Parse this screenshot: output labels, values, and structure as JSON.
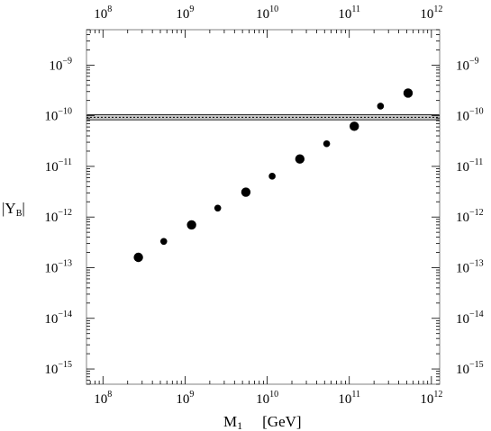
{
  "chart_data": {
    "type": "scatter",
    "xlabel_symbol": "M",
    "xlabel_subscript": "1",
    "xlabel_unit": "[GeV]",
    "ylabel_text": "|Y",
    "ylabel_subscript": "B",
    "ylabel_end": "|",
    "x_scale": "log",
    "y_scale": "log",
    "xlim": [
      63000000.0,
      1260000000000.0
    ],
    "ylim": [
      5e-16,
      5e-09
    ],
    "x_ticks": [
      {
        "base": "10",
        "exp": "8",
        "value": 100000000.0
      },
      {
        "base": "10",
        "exp": "9",
        "value": 1000000000.0
      },
      {
        "base": "10",
        "exp": "10",
        "value": 10000000000.0
      },
      {
        "base": "10",
        "exp": "11",
        "value": 100000000000.0
      },
      {
        "base": "10",
        "exp": "12",
        "value": 1000000000000.0
      }
    ],
    "y_ticks": [
      {
        "base": "10",
        "exp": "−9",
        "value": 1e-09
      },
      {
        "base": "10",
        "exp": "−10",
        "value": 1e-10
      },
      {
        "base": "10",
        "exp": "−11",
        "value": 1e-11
      },
      {
        "base": "10",
        "exp": "−12",
        "value": 1e-12
      },
      {
        "base": "10",
        "exp": "−13",
        "value": 1e-13
      },
      {
        "base": "10",
        "exp": "−14",
        "value": 1e-14
      },
      {
        "base": "10",
        "exp": "−15",
        "value": 1e-15
      }
    ],
    "observed_band": {
      "lower": 8.3e-11,
      "upper": 1.05e-10,
      "central": 9.3e-11,
      "color": "#c8c8c8"
    },
    "points": [
      {
        "x": 270000000.0,
        "y": 1.6e-13,
        "size": "large"
      },
      {
        "x": 550000000.0,
        "y": 3.3e-13,
        "size": "small"
      },
      {
        "x": 1200000000.0,
        "y": 7e-13,
        "size": "large"
      },
      {
        "x": 2500000000.0,
        "y": 1.5e-12,
        "size": "small"
      },
      {
        "x": 5500000000.0,
        "y": 3.1e-12,
        "size": "large"
      },
      {
        "x": 11500000000.0,
        "y": 6.4e-12,
        "size": "small"
      },
      {
        "x": 25000000000.0,
        "y": 1.4e-11,
        "size": "large"
      },
      {
        "x": 53000000000.0,
        "y": 2.8e-11,
        "size": "small"
      },
      {
        "x": 115000000000.0,
        "y": 6.2e-11,
        "size": "large"
      },
      {
        "x": 240000000000.0,
        "y": 1.55e-10,
        "size": "small"
      },
      {
        "x": 520000000000.0,
        "y": 2.8e-10,
        "size": "large"
      }
    ],
    "grid": false,
    "marker_color": "#000000",
    "frame_color": "#808080"
  }
}
